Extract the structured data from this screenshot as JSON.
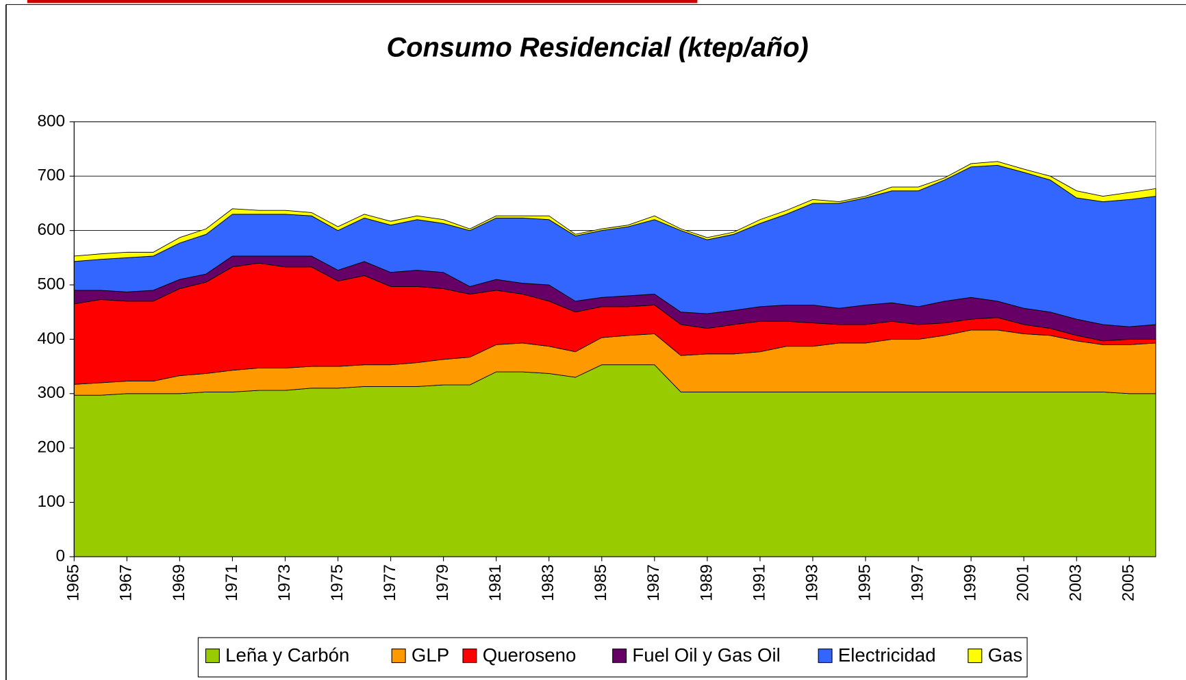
{
  "chart_data": {
    "type": "stacked-area",
    "title": "Consumo Residencial (ktep/año)",
    "x": [
      1965,
      1966,
      1967,
      1968,
      1969,
      1970,
      1971,
      1972,
      1973,
      1974,
      1975,
      1976,
      1977,
      1978,
      1979,
      1980,
      1981,
      1982,
      1983,
      1984,
      1985,
      1986,
      1987,
      1988,
      1989,
      1990,
      1991,
      1992,
      1993,
      1994,
      1995,
      1996,
      1997,
      1998,
      1999,
      2000,
      2001,
      2002,
      2003,
      2004,
      2005,
      2006
    ],
    "xlim": [
      1965,
      2006
    ],
    "xticks": [
      1965,
      1967,
      1969,
      1971,
      1973,
      1975,
      1977,
      1979,
      1981,
      1983,
      1985,
      1987,
      1989,
      1991,
      1993,
      1995,
      1997,
      1999,
      2001,
      2003,
      2005
    ],
    "ylim": [
      0,
      800
    ],
    "yticks": [
      0,
      100,
      200,
      300,
      400,
      500,
      600,
      700,
      800
    ],
    "grid": true,
    "legend": "bottom",
    "series": [
      {
        "name": "Leña y Carbón",
        "color": "#99cc00",
        "values": [
          297,
          297,
          300,
          300,
          300,
          303,
          303,
          306,
          306,
          310,
          310,
          313,
          313,
          313,
          316,
          316,
          340,
          340,
          337,
          330,
          353,
          353,
          353,
          303,
          303,
          303,
          303,
          303,
          303,
          303,
          303,
          303,
          303,
          303,
          303,
          303,
          303,
          303,
          303,
          303,
          300,
          300
        ]
      },
      {
        "name": "GLP",
        "color": "#ff9900",
        "values": [
          20,
          23,
          23,
          23,
          33,
          34,
          40,
          41,
          41,
          40,
          40,
          40,
          40,
          44,
          47,
          51,
          50,
          53,
          50,
          47,
          50,
          54,
          57,
          67,
          70,
          70,
          74,
          84,
          84,
          90,
          90,
          97,
          97,
          104,
          114,
          114,
          107,
          104,
          94,
          87,
          90,
          93
        ]
      },
      {
        "name": "Queroseno",
        "color": "#ff0000",
        "values": [
          148,
          153,
          147,
          147,
          160,
          168,
          190,
          193,
          186,
          183,
          157,
          164,
          144,
          140,
          130,
          116,
          100,
          90,
          83,
          73,
          57,
          53,
          53,
          57,
          47,
          54,
          56,
          46,
          43,
          34,
          34,
          33,
          27,
          23,
          20,
          23,
          17,
          13,
          10,
          7,
          10,
          7
        ]
      },
      {
        "name": "Fuel Oil y Gas Oil",
        "color": "#660066",
        "values": [
          25,
          17,
          17,
          20,
          17,
          15,
          20,
          13,
          20,
          20,
          20,
          26,
          26,
          30,
          30,
          14,
          20,
          20,
          30,
          20,
          17,
          20,
          20,
          23,
          27,
          26,
          27,
          30,
          33,
          30,
          36,
          34,
          33,
          40,
          40,
          30,
          30,
          30,
          30,
          30,
          23,
          27
        ]
      },
      {
        "name": "Electricidad",
        "color": "#3366ff",
        "values": [
          53,
          57,
          63,
          63,
          67,
          73,
          77,
          77,
          77,
          74,
          73,
          80,
          87,
          93,
          90,
          103,
          113,
          120,
          120,
          120,
          123,
          127,
          137,
          150,
          136,
          140,
          153,
          167,
          187,
          193,
          197,
          206,
          213,
          223,
          240,
          250,
          250,
          243,
          223,
          226,
          234,
          236
        ]
      },
      {
        "name": "Gas",
        "color": "#ffff00",
        "values": [
          10,
          10,
          10,
          7,
          10,
          10,
          10,
          7,
          7,
          6,
          7,
          7,
          7,
          7,
          7,
          3,
          4,
          4,
          7,
          3,
          3,
          3,
          7,
          3,
          4,
          4,
          7,
          7,
          7,
          3,
          3,
          7,
          7,
          4,
          6,
          7,
          6,
          7,
          13,
          10,
          13,
          14
        ]
      }
    ]
  }
}
